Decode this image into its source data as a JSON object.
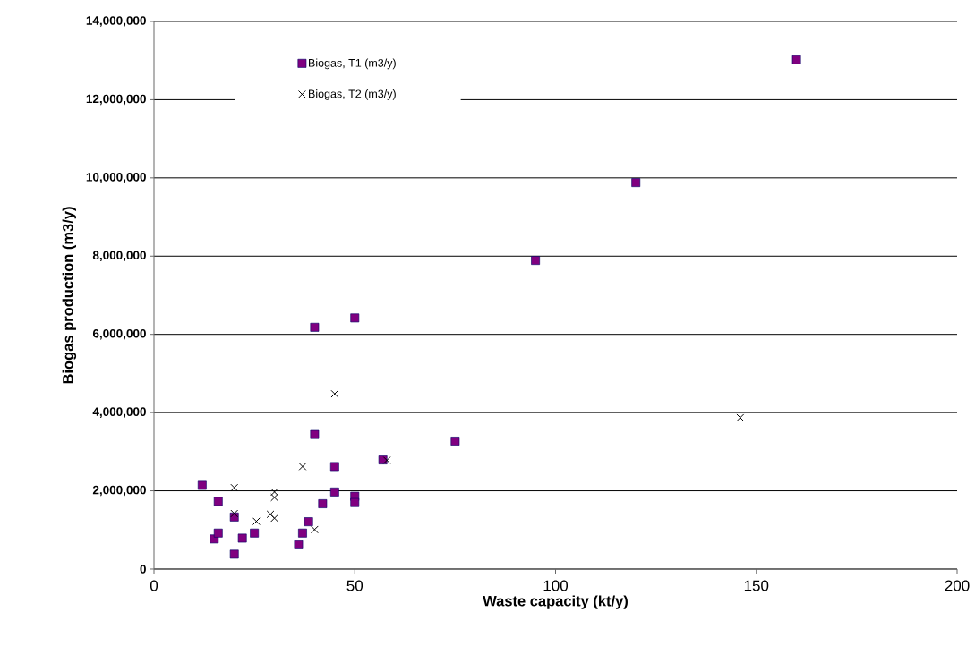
{
  "chart_data": {
    "type": "scatter",
    "xlabel": "Waste capacity (kt/y)",
    "ylabel": "Biogas production (m3/y)",
    "xlim": [
      0,
      200
    ],
    "ylim": [
      0,
      14000000
    ],
    "xticks": [
      0,
      50,
      100,
      150,
      200
    ],
    "yticks": [
      {
        "value": 0,
        "label": "0"
      },
      {
        "value": 2000000,
        "label": "2,000,000"
      },
      {
        "value": 4000000,
        "label": "4,000,000"
      },
      {
        "value": 6000000,
        "label": "6,000,000"
      },
      {
        "value": 8000000,
        "label": "8,000,000"
      },
      {
        "value": 10000000,
        "label": "10,000,000"
      },
      {
        "value": 12000000,
        "label": "12,000,000"
      },
      {
        "value": 14000000,
        "label": "14,000,000"
      }
    ],
    "grid": "y",
    "legend": "top left",
    "series": [
      {
        "name": "Biogas, T1 (m3/y)",
        "color": "#800080",
        "marker": "square",
        "x": [
          12,
          16,
          15,
          16,
          20,
          20,
          22,
          25,
          36,
          37,
          38.5,
          40,
          42,
          45,
          45,
          50,
          50,
          57,
          40,
          50,
          75,
          95,
          120,
          160
        ],
        "values": [
          2140000,
          1730000,
          770000,
          920000,
          1330000,
          380000,
          790000,
          920000,
          620000,
          920000,
          1210000,
          3440000,
          1670000,
          2620000,
          1970000,
          1860000,
          1700000,
          2790000,
          6180000,
          6420000,
          3270000,
          7890000,
          9880000,
          13020000
        ]
      },
      {
        "name": "Biogas, T2 (m3/y)",
        "color": "#000000",
        "marker": "cross",
        "x": [
          45,
          20,
          20,
          25.5,
          30,
          30,
          29,
          30,
          37,
          40,
          58,
          146
        ],
        "values": [
          4480000,
          2080000,
          1420000,
          1220000,
          1970000,
          1830000,
          1400000,
          1300000,
          2620000,
          1010000,
          2780000,
          3870000
        ]
      }
    ]
  }
}
